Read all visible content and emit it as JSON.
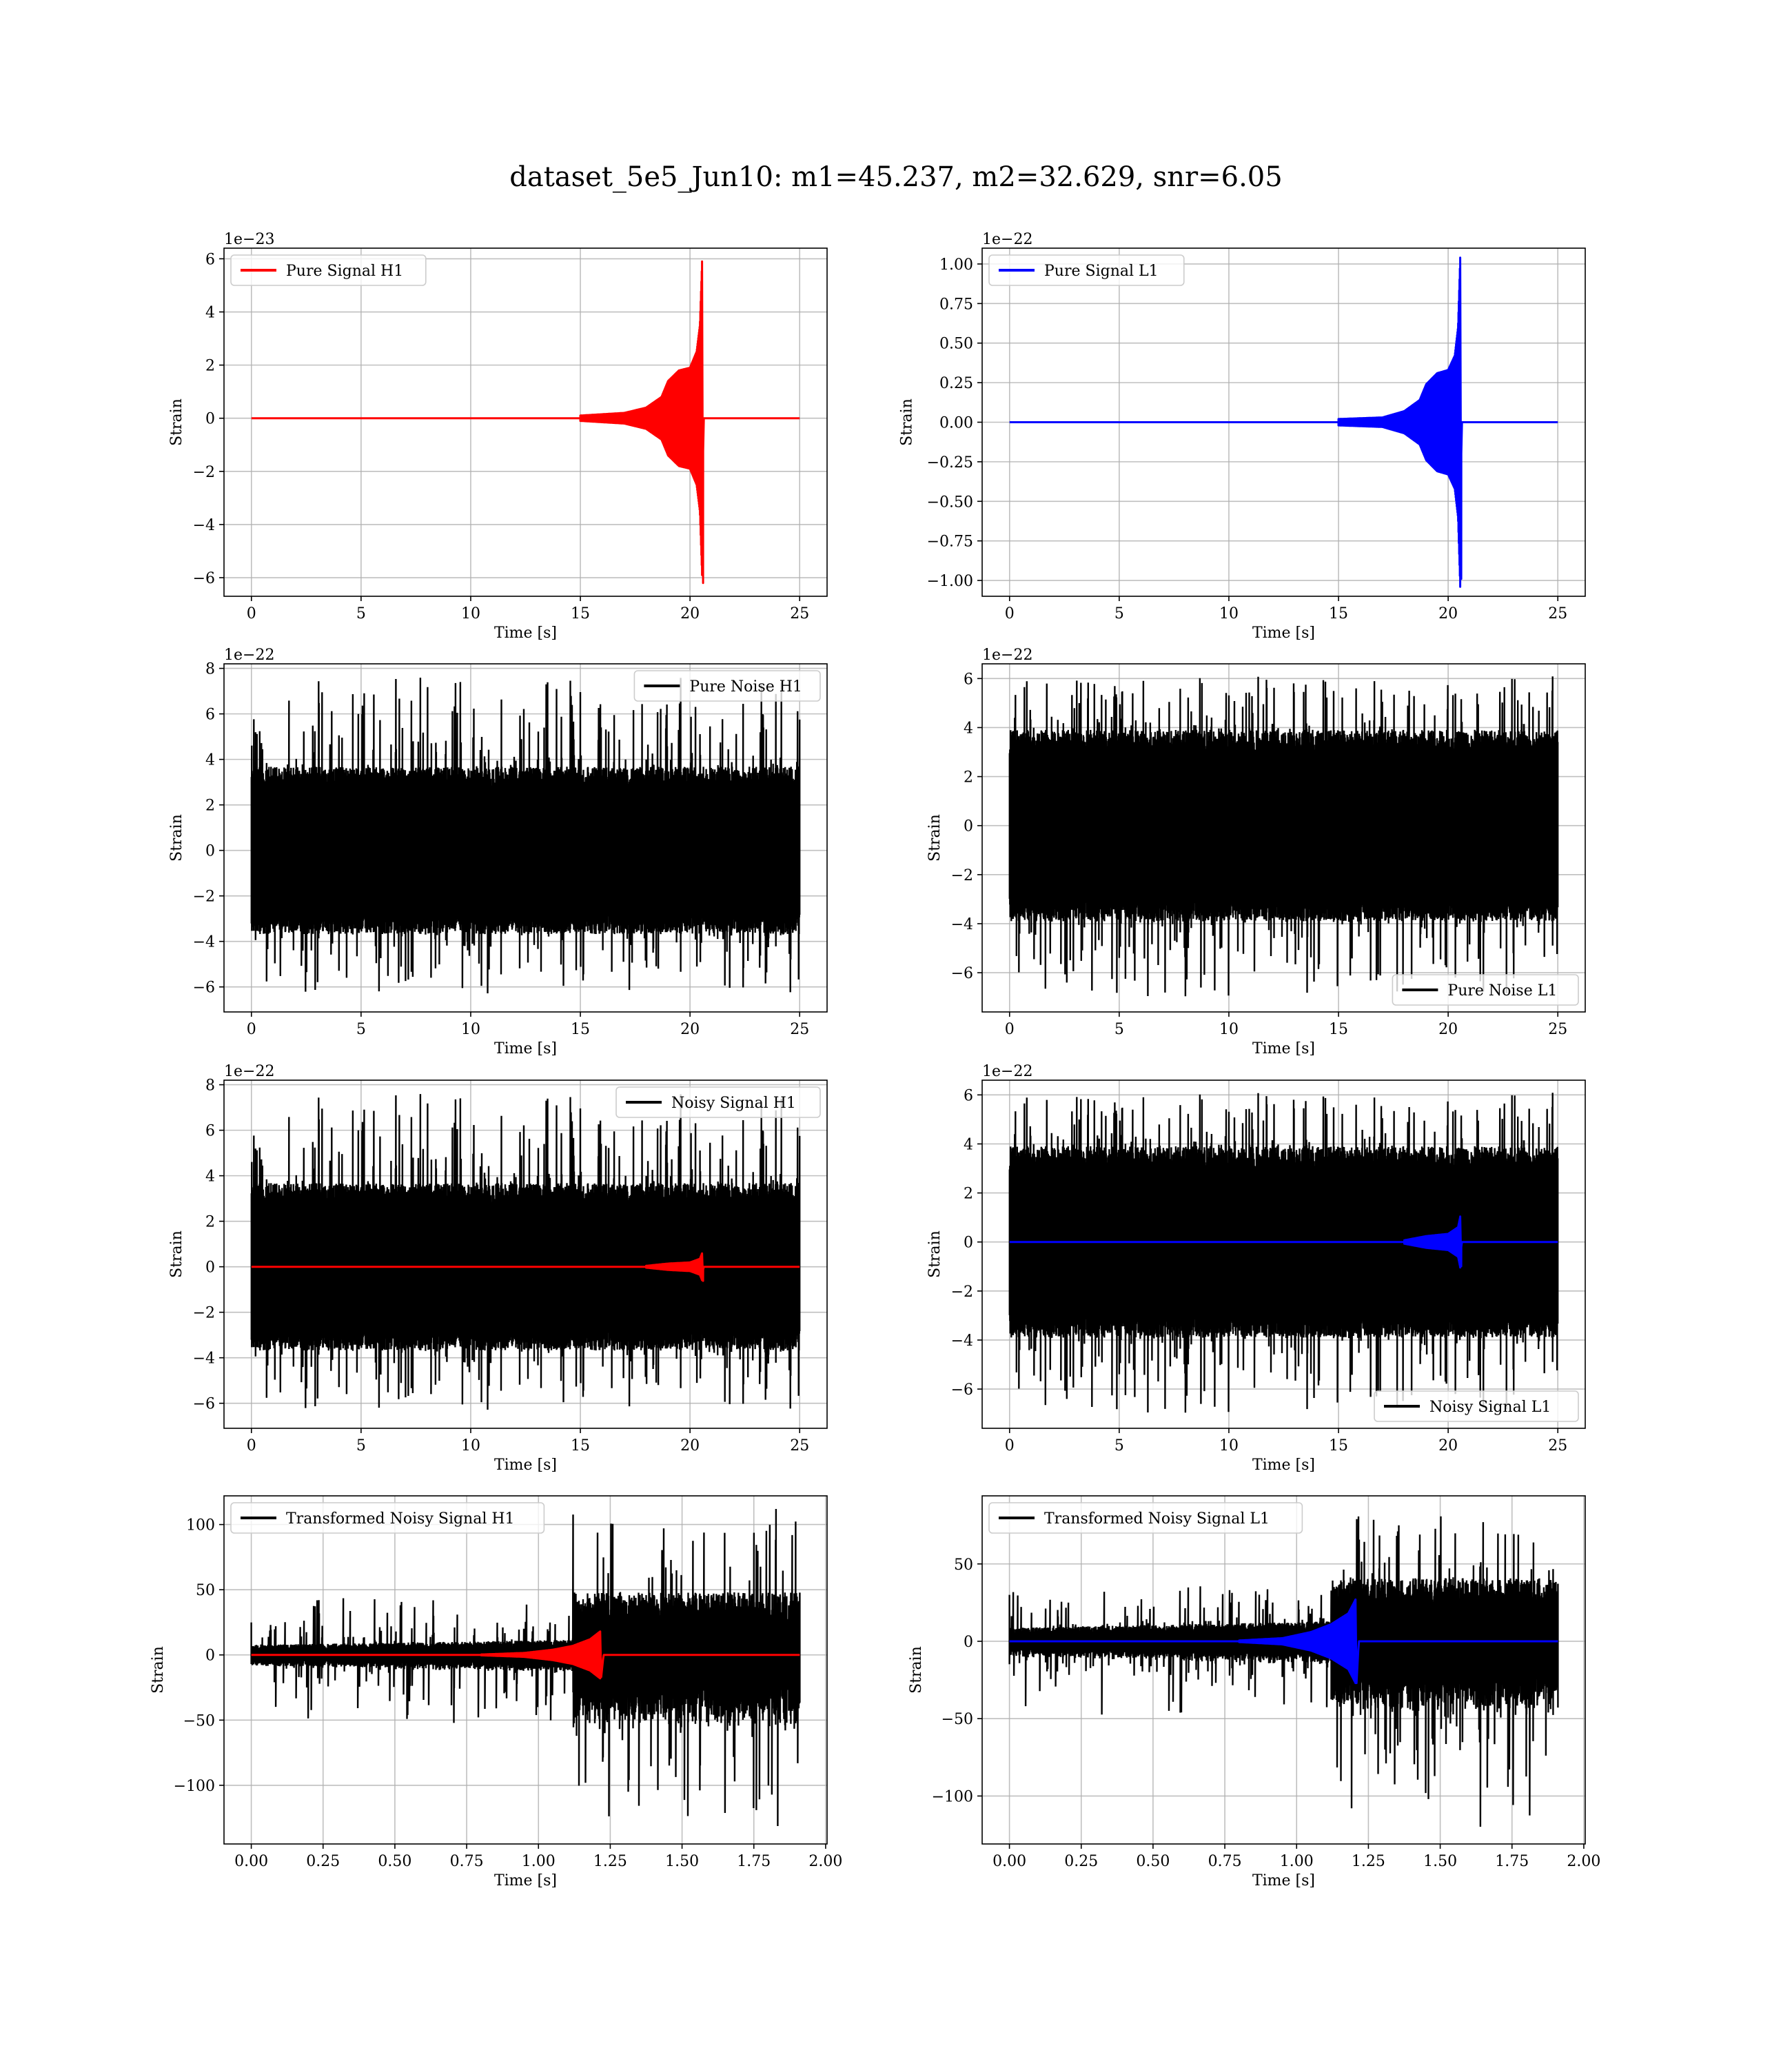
{
  "figure": {
    "title": "dataset_5e5_Jun10: m1=45.237, m2=32.629, snr=6.05"
  },
  "colors": {
    "h1": "#ff0000",
    "l1": "#0000ff",
    "noise": "#000000"
  },
  "chart_data": [
    {
      "id": "pure-signal-h1",
      "type": "line",
      "xlabel": "Time [s]",
      "ylabel": "Strain",
      "offset_text": "1e−23",
      "xlim": [
        -1.25,
        26.25
      ],
      "ylim": [
        -6.7,
        6.4
      ],
      "xticks": [
        0,
        5,
        10,
        15,
        20,
        25
      ],
      "xtick_labels": [
        "0",
        "5",
        "10",
        "15",
        "20",
        "25"
      ],
      "yticks": [
        -6,
        -4,
        -2,
        0,
        2,
        4,
        6
      ],
      "ytick_labels": [
        "−6",
        "−4",
        "−2",
        "0",
        "2",
        "4",
        "6"
      ],
      "grid": true,
      "legend_position": "upper-left",
      "series": [
        {
          "name": "Pure Signal H1",
          "kind": "chirp",
          "color": "#ff0000",
          "x_start": 0,
          "x_end": 25,
          "t_merger": 20.6,
          "peak_pos": 5.9,
          "peak_neg": -6.2,
          "envelope": [
            [
              15.0,
              0.1
            ],
            [
              17.0,
              0.2
            ],
            [
              18.0,
              0.4
            ],
            [
              18.7,
              0.8
            ],
            [
              19.0,
              1.4
            ],
            [
              19.5,
              1.8
            ],
            [
              20.0,
              1.9
            ],
            [
              20.3,
              2.5
            ],
            [
              20.45,
              3.5
            ],
            [
              20.55,
              5.9
            ]
          ]
        }
      ]
    },
    {
      "id": "pure-signal-l1",
      "type": "line",
      "xlabel": "Time [s]",
      "ylabel": "Strain",
      "offset_text": "1e−22",
      "xlim": [
        -1.25,
        26.25
      ],
      "ylim": [
        -1.1,
        1.1
      ],
      "xticks": [
        0,
        5,
        10,
        15,
        20,
        25
      ],
      "xtick_labels": [
        "0",
        "5",
        "10",
        "15",
        "20",
        "25"
      ],
      "yticks": [
        -1.0,
        -0.75,
        -0.5,
        -0.25,
        0.0,
        0.25,
        0.5,
        0.75,
        1.0
      ],
      "ytick_labels": [
        "−1.00",
        "−0.75",
        "−0.50",
        "−0.25",
        "0.00",
        "0.25",
        "0.50",
        "0.75",
        "1.00"
      ],
      "grid": true,
      "legend_position": "upper-left",
      "series": [
        {
          "name": "Pure Signal L1",
          "kind": "chirp",
          "color": "#0000ff",
          "x_start": 0,
          "x_end": 25,
          "t_merger": 20.6,
          "peak_pos": 1.04,
          "peak_neg": -0.99,
          "envelope": [
            [
              15.0,
              0.02
            ],
            [
              17.0,
              0.03
            ],
            [
              18.0,
              0.07
            ],
            [
              18.7,
              0.14
            ],
            [
              19.0,
              0.24
            ],
            [
              19.5,
              0.31
            ],
            [
              20.0,
              0.33
            ],
            [
              20.3,
              0.42
            ],
            [
              20.45,
              0.6
            ],
            [
              20.55,
              1.04
            ]
          ]
        }
      ]
    },
    {
      "id": "pure-noise-h1",
      "type": "line",
      "xlabel": "Time [s]",
      "ylabel": "Strain",
      "offset_text": "1e−22",
      "xlim": [
        -1.25,
        26.25
      ],
      "ylim": [
        -7.1,
        8.2
      ],
      "xticks": [
        0,
        5,
        10,
        15,
        20,
        25
      ],
      "xtick_labels": [
        "0",
        "5",
        "10",
        "15",
        "20",
        "25"
      ],
      "yticks": [
        -6,
        -4,
        -2,
        0,
        2,
        4,
        6,
        8
      ],
      "ytick_labels": [
        "−6",
        "−4",
        "−2",
        "0",
        "2",
        "4",
        "6",
        "8"
      ],
      "grid": true,
      "legend_position": "upper-right",
      "series": [
        {
          "name": "Pure Noise H1",
          "kind": "noise",
          "color": "#000000",
          "x_start": 0,
          "x_end": 25,
          "band": [
            -3.2,
            3.2
          ],
          "spike_max": 7.6,
          "spike_min": -6.4,
          "seed": 11
        }
      ]
    },
    {
      "id": "pure-noise-l1",
      "type": "line",
      "xlabel": "Time [s]",
      "ylabel": "Strain",
      "offset_text": "1e−22",
      "xlim": [
        -1.25,
        26.25
      ],
      "ylim": [
        -7.6,
        6.6
      ],
      "xticks": [
        0,
        5,
        10,
        15,
        20,
        25
      ],
      "xtick_labels": [
        "0",
        "5",
        "10",
        "15",
        "20",
        "25"
      ],
      "yticks": [
        -6,
        -4,
        -2,
        0,
        2,
        4,
        6
      ],
      "ytick_labels": [
        "−6",
        "−4",
        "−2",
        "0",
        "2",
        "4",
        "6"
      ],
      "grid": true,
      "legend_position": "lower-right",
      "series": [
        {
          "name": "Pure Noise L1",
          "kind": "noise",
          "color": "#000000",
          "x_start": 0,
          "x_end": 25,
          "band": [
            -3.4,
            3.4
          ],
          "spike_max": 6.1,
          "spike_min": -7.0,
          "seed": 23
        }
      ]
    },
    {
      "id": "noisy-signal-h1",
      "type": "line",
      "xlabel": "Time [s]",
      "ylabel": "Strain",
      "offset_text": "1e−22",
      "xlim": [
        -1.25,
        26.25
      ],
      "ylim": [
        -7.1,
        8.2
      ],
      "xticks": [
        0,
        5,
        10,
        15,
        20,
        25
      ],
      "xtick_labels": [
        "0",
        "5",
        "10",
        "15",
        "20",
        "25"
      ],
      "yticks": [
        -6,
        -4,
        -2,
        0,
        2,
        4,
        6,
        8
      ],
      "ytick_labels": [
        "−6",
        "−4",
        "−2",
        "0",
        "2",
        "4",
        "6",
        "8"
      ],
      "grid": true,
      "legend_position": "upper-right",
      "series": [
        {
          "name": "Noisy Signal H1",
          "kind": "noise",
          "color": "#000000",
          "x_start": 0,
          "x_end": 25,
          "band": [
            -3.2,
            3.2
          ],
          "spike_max": 7.6,
          "spike_min": -6.4,
          "seed": 11
        },
        {
          "name": "",
          "kind": "chirp",
          "color": "#ff0000",
          "x_start": 0,
          "x_end": 25,
          "t_merger": 20.6,
          "peak_pos": 0.59,
          "peak_neg": -0.62,
          "envelope": [
            [
              18.0,
              0.04
            ],
            [
              19.0,
              0.14
            ],
            [
              20.0,
              0.19
            ],
            [
              20.45,
              0.35
            ],
            [
              20.55,
              0.59
            ]
          ]
        }
      ]
    },
    {
      "id": "noisy-signal-l1",
      "type": "line",
      "xlabel": "Time [s]",
      "ylabel": "Strain",
      "offset_text": "1e−22",
      "xlim": [
        -1.25,
        26.25
      ],
      "ylim": [
        -7.6,
        6.6
      ],
      "xticks": [
        0,
        5,
        10,
        15,
        20,
        25
      ],
      "xtick_labels": [
        "0",
        "5",
        "10",
        "15",
        "20",
        "25"
      ],
      "yticks": [
        -6,
        -4,
        -2,
        0,
        2,
        4,
        6
      ],
      "ytick_labels": [
        "−6",
        "−4",
        "−2",
        "0",
        "2",
        "4",
        "6"
      ],
      "grid": true,
      "legend_position": "lower-right",
      "series": [
        {
          "name": "Noisy Signal L1",
          "kind": "noise",
          "color": "#000000",
          "x_start": 0,
          "x_end": 25,
          "band": [
            -3.4,
            3.4
          ],
          "spike_max": 6.1,
          "spike_min": -7.0,
          "seed": 23
        },
        {
          "name": "",
          "kind": "chirp",
          "color": "#0000ff",
          "x_start": 0,
          "x_end": 25,
          "t_merger": 20.6,
          "peak_pos": 1.04,
          "peak_neg": -0.99,
          "envelope": [
            [
              18.0,
              0.07
            ],
            [
              19.0,
              0.24
            ],
            [
              20.0,
              0.33
            ],
            [
              20.45,
              0.6
            ],
            [
              20.55,
              1.04
            ]
          ]
        }
      ]
    },
    {
      "id": "transformed-noisy-signal-h1",
      "type": "line",
      "xlabel": "Time [s]",
      "ylabel": "Strain",
      "offset_text": "",
      "xlim": [
        -0.095,
        2.005
      ],
      "ylim": [
        -145,
        122
      ],
      "xticks": [
        0.0,
        0.25,
        0.5,
        0.75,
        1.0,
        1.25,
        1.5,
        1.75,
        2.0
      ],
      "xtick_labels": [
        "0.00",
        "0.25",
        "0.50",
        "0.75",
        "1.00",
        "1.25",
        "1.50",
        "1.75",
        "2.00"
      ],
      "yticks": [
        -100,
        -50,
        0,
        50,
        100
      ],
      "ytick_labels": [
        "−100",
        "−50",
        "0",
        "50",
        "100"
      ],
      "grid": true,
      "legend_position": "upper-left",
      "series": [
        {
          "name": "Transformed Noisy Signal H1",
          "kind": "whitened",
          "color": "#000000",
          "x_start": 0,
          "x_end": 1.91,
          "t_step": 1.12,
          "low_band": 8,
          "high_band": 40,
          "spike_max": 112,
          "spike_min": -133,
          "seed": 37
        },
        {
          "name": "",
          "kind": "chirp",
          "color": "#ff0000",
          "x_start": 0,
          "x_end": 1.91,
          "t_merger": 1.225,
          "peak_pos": 18,
          "peak_neg": -17,
          "envelope": [
            [
              0.8,
              0.3
            ],
            [
              0.95,
              1.5
            ],
            [
              1.05,
              4
            ],
            [
              1.12,
              7
            ],
            [
              1.18,
              12
            ],
            [
              1.215,
              18
            ]
          ]
        }
      ]
    },
    {
      "id": "transformed-noisy-signal-l1",
      "type": "line",
      "xlabel": "Time [s]",
      "ylabel": "Strain",
      "offset_text": "",
      "xlim": [
        -0.095,
        2.005
      ],
      "ylim": [
        -131,
        94
      ],
      "xticks": [
        0.0,
        0.25,
        0.5,
        0.75,
        1.0,
        1.25,
        1.5,
        1.75,
        2.0
      ],
      "xtick_labels": [
        "0.00",
        "0.25",
        "0.50",
        "0.75",
        "1.00",
        "1.25",
        "1.50",
        "1.75",
        "2.00"
      ],
      "yticks": [
        -100,
        -50,
        0,
        50
      ],
      "ytick_labels": [
        "−100",
        "−50",
        "0",
        "50"
      ],
      "grid": true,
      "legend_position": "upper-left",
      "series": [
        {
          "name": "Transformed Noisy Signal L1",
          "kind": "whitened",
          "color": "#000000",
          "x_start": 0,
          "x_end": 1.91,
          "t_step": 1.12,
          "low_band": 9,
          "high_band": 34,
          "spike_max": 83,
          "spike_min": -121,
          "seed": 53
        },
        {
          "name": "",
          "kind": "chirp",
          "color": "#0000ff",
          "x_start": 0,
          "x_end": 1.91,
          "t_merger": 1.215,
          "peak_pos": 27,
          "peak_neg": -27,
          "envelope": [
            [
              0.8,
              0.5
            ],
            [
              0.95,
              2
            ],
            [
              1.05,
              6
            ],
            [
              1.12,
              11
            ],
            [
              1.18,
              18
            ],
            [
              1.205,
              27
            ]
          ]
        }
      ]
    }
  ]
}
